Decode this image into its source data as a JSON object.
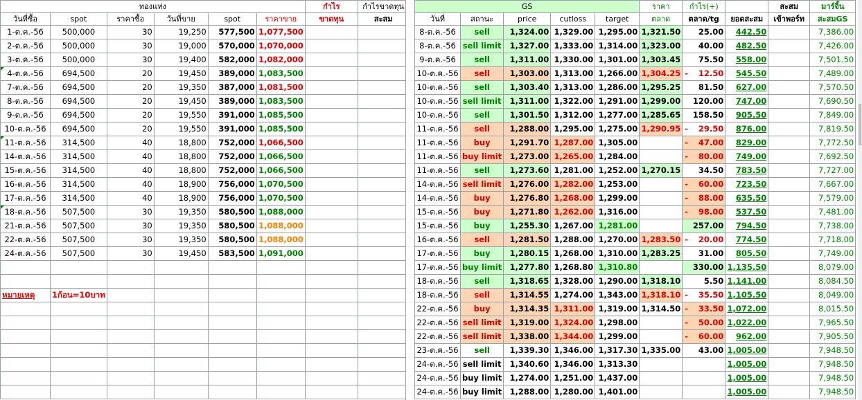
{
  "left_headers": {
    "gold_group": "ทองแท่ง",
    "profit": "กำไร",
    "loss": "ขาดทุน",
    "cumulative": "กำไรขาดทุน",
    "cumulative2": "สะสม",
    "buy_date": "วันที่ซื้อ",
    "spot": "spot",
    "buy_price": "ราคาซื้อ",
    "sell_date": "วันที่ขาย",
    "spot2": "spot",
    "sell_price": "ราคาขาย"
  },
  "left_rows": [
    {
      "buy_date": "1-ต.ค.-56",
      "spot": "500,000",
      "qty": "30",
      "sell_date": "19,250",
      "spot2": "577,500",
      "sell_price": "1,077,500",
      "color": "red",
      "marker": false
    },
    {
      "buy_date": "2-ต.ค.-56",
      "spot": "500,000",
      "qty": "30",
      "sell_date": "19,000",
      "spot2": "570,000",
      "sell_price": "1,070,000",
      "color": "red",
      "marker": false
    },
    {
      "buy_date": "3-ต.ค.-56",
      "spot": "500,000",
      "qty": "30",
      "sell_date": "19,400",
      "spot2": "582,000",
      "sell_price": "1,082,000",
      "color": "red",
      "marker": false
    },
    {
      "buy_date": "4-ต.ค.-56",
      "spot": "694,500",
      "qty": "20",
      "sell_date": "19,450",
      "spot2": "389,000",
      "sell_price": "1,083,500",
      "color": "grn",
      "marker": true
    },
    {
      "buy_date": "7-ต.ค.-56",
      "spot": "694,500",
      "qty": "20",
      "sell_date": "19,350",
      "spot2": "387,000",
      "sell_price": "1,081,500",
      "color": "red",
      "marker": false
    },
    {
      "buy_date": "8-ต.ค.-56",
      "spot": "694,500",
      "qty": "20",
      "sell_date": "19,450",
      "spot2": "389,000",
      "sell_price": "1,083,500",
      "color": "grn",
      "marker": false
    },
    {
      "buy_date": "9-ต.ค.-56",
      "spot": "694,500",
      "qty": "20",
      "sell_date": "19,550",
      "spot2": "391,000",
      "sell_price": "1,085,500",
      "color": "grn",
      "marker": false
    },
    {
      "buy_date": "10-ต.ค.-56",
      "spot": "694,500",
      "qty": "20",
      "sell_date": "19,550",
      "spot2": "391,000",
      "sell_price": "1,085,500",
      "color": "grn",
      "marker": false
    },
    {
      "buy_date": "11-ต.ค.-56",
      "spot": "314,500",
      "qty": "40",
      "sell_date": "18,800",
      "spot2": "752,000",
      "sell_price": "1,066,500",
      "color": "red",
      "marker": true
    },
    {
      "buy_date": "14-ต.ค.-56",
      "spot": "314,500",
      "qty": "40",
      "sell_date": "18,800",
      "spot2": "752,000",
      "sell_price": "1,066,500",
      "color": "grn",
      "marker": false
    },
    {
      "buy_date": "15-ต.ค.-56",
      "spot": "314,500",
      "qty": "40",
      "sell_date": "18,800",
      "spot2": "752,000",
      "sell_price": "1,066,500",
      "color": "grn",
      "marker": false
    },
    {
      "buy_date": "16-ต.ค.-56",
      "spot": "314,500",
      "qty": "40",
      "sell_date": "18,900",
      "spot2": "756,000",
      "sell_price": "1,070,500",
      "color": "grn",
      "marker": false
    },
    {
      "buy_date": "17-ต.ค.-56",
      "spot": "314,500",
      "qty": "40",
      "sell_date": "18,900",
      "spot2": "756,000",
      "sell_price": "1,070,500",
      "color": "grn",
      "marker": false
    },
    {
      "buy_date": "18-ต.ค.-56",
      "spot": "507,500",
      "qty": "30",
      "sell_date": "19,350",
      "spot2": "580,500",
      "sell_price": "1,088,000",
      "color": "grn",
      "marker": true
    },
    {
      "buy_date": "21-ต.ค.-56",
      "spot": "507,500",
      "qty": "30",
      "sell_date": "19,350",
      "spot2": "580,500",
      "sell_price": "1,088,000",
      "color": "org",
      "marker": false
    },
    {
      "buy_date": "22-ต.ค.-56",
      "spot": "507,500",
      "qty": "30",
      "sell_date": "19,350",
      "spot2": "580,500",
      "sell_price": "1,088,000",
      "color": "org",
      "marker": false
    },
    {
      "buy_date": "24-ต.ค.-56",
      "spot": "507,500",
      "qty": "30",
      "sell_date": "19,450",
      "spot2": "583,500",
      "sell_price": "1,091,000",
      "color": "grn",
      "marker": false
    }
  ],
  "note": {
    "label": "หมายเหตุ",
    "text": "1ก้อน=10บาท"
  },
  "right_headers": {
    "gs": "GS",
    "price_group": "ราคา",
    "profit_group": "กำไร(+)",
    "cum": "สะสม",
    "margin": "มาร์จิ้น",
    "date": "วันที่",
    "status": "สถานะ",
    "price": "price",
    "cutloss": "cutloss",
    "target": "target",
    "market": "ตลาด",
    "mkt_tg": "ตลาด/tg",
    "cum_total": "ยอดสะสม",
    "port": "เข้าพอร์ท",
    "cum_gs": "สะสมGS"
  },
  "right_rows": [
    {
      "date": "8-ต.ค.-56",
      "status": "sell",
      "price": "1,324.00",
      "cutloss": "1,329.00",
      "target": "1,295.00",
      "market": "1,321.50",
      "profit": "25.00",
      "neg": false,
      "cum": "442.50",
      "margin": "7,386.00",
      "sbg": "g",
      "pbg": "g",
      "cbg": "",
      "mbg": "g",
      "fbg": ""
    },
    {
      "date": "8-ต.ค.-56",
      "status": "sell limit",
      "price": "1,327.00",
      "cutloss": "1,333.00",
      "target": "1,314.00",
      "market": "1,323.00",
      "profit": "40.00",
      "neg": false,
      "cum": "482.50",
      "margin": "7,426.00",
      "sbg": "g",
      "pbg": "g",
      "cbg": "",
      "mbg": "g",
      "fbg": ""
    },
    {
      "date": "9-ต.ค.-56",
      "status": "sell",
      "price": "1,311.00",
      "cutloss": "1,330.00",
      "target": "1,301.00",
      "market": "1,303.45",
      "profit": "75.50",
      "neg": false,
      "cum": "558.00",
      "margin": "7,501.50",
      "sbg": "g",
      "pbg": "g",
      "cbg": "",
      "mbg": "g",
      "fbg": ""
    },
    {
      "date": "10-ต.ค.-56",
      "status": "sell",
      "price": "1,303.00",
      "cutloss": "1,313.00",
      "target": "1,266.00",
      "market": "1,304.25",
      "profit": "12.50",
      "neg": true,
      "cum": "545.50",
      "margin": "7,489.00",
      "sbg": "o",
      "pbg": "o",
      "cbg": "",
      "mbg": "o",
      "fbg": ""
    },
    {
      "date": "10-ต.ค.-56",
      "status": "sell",
      "price": "1,303.40",
      "cutloss": "1,313.00",
      "target": "1,286.00",
      "market": "1,295.25",
      "profit": "81.50",
      "neg": false,
      "cum": "627.00",
      "margin": "7,570.50",
      "sbg": "g",
      "pbg": "g",
      "cbg": "",
      "mbg": "g",
      "fbg": ""
    },
    {
      "date": "10-ต.ค.-56",
      "status": "sell limit",
      "price": "1,311.00",
      "cutloss": "1,322.00",
      "target": "1,291.00",
      "market": "1,299.00",
      "profit": "120.00",
      "neg": false,
      "cum": "747.00",
      "margin": "7,690.50",
      "sbg": "g",
      "pbg": "g",
      "cbg": "",
      "mbg": "g",
      "fbg": ""
    },
    {
      "date": "10-ต.ค.-56",
      "status": "sell",
      "price": "1,301.50",
      "cutloss": "1,312.00",
      "target": "1,277.00",
      "market": "1,285.65",
      "profit": "158.50",
      "neg": false,
      "cum": "905.50",
      "margin": "7,849.00",
      "sbg": "g",
      "pbg": "g",
      "cbg": "",
      "mbg": "g",
      "fbg": ""
    },
    {
      "date": "11-ต.ค.-56",
      "status": "sell",
      "price": "1,288.00",
      "cutloss": "1,295.00",
      "target": "1,275.00",
      "market": "1,290.95",
      "profit": "29.50",
      "neg": true,
      "cum": "876.00",
      "margin": "7,819.50",
      "sbg": "o",
      "pbg": "o",
      "cbg": "",
      "mbg": "o",
      "fbg": ""
    },
    {
      "date": "11-ต.ค.-56",
      "status": "buy",
      "price": "1,291.70",
      "cutloss": "1,287.00",
      "target": "1,305.00",
      "market": "",
      "profit": "47.00",
      "neg": true,
      "cum": "829.00",
      "margin": "7,772.50",
      "sbg": "o",
      "pbg": "o",
      "cbg": "o",
      "mbg": "",
      "fbg": "o"
    },
    {
      "date": "11-ต.ค.-56",
      "status": "buy limit",
      "price": "1,273.00",
      "cutloss": "1,265.00",
      "target": "1,284.00",
      "market": "",
      "profit": "80.00",
      "neg": true,
      "cum": "749.00",
      "margin": "7,692.50",
      "sbg": "o",
      "pbg": "o",
      "cbg": "o",
      "mbg": "",
      "fbg": "o"
    },
    {
      "date": "11-ต.ค.-56",
      "status": "sell",
      "price": "1,273.60",
      "cutloss": "1,281.00",
      "target": "1,252.00",
      "market": "1,270.15",
      "profit": "34.50",
      "neg": false,
      "cum": "783.50",
      "margin": "7,727.00",
      "sbg": "g",
      "pbg": "g",
      "cbg": "",
      "mbg": "g",
      "fbg": ""
    },
    {
      "date": "14-ต.ค.-56",
      "status": "sell limit",
      "price": "1,276.00",
      "cutloss": "1,282.00",
      "target": "1,253.00",
      "market": "",
      "profit": "60.00",
      "neg": true,
      "cum": "723.50",
      "margin": "7,667.00",
      "sbg": "o",
      "pbg": "o",
      "cbg": "o",
      "mbg": "",
      "fbg": "o"
    },
    {
      "date": "14-ต.ค.-56",
      "status": "buy",
      "price": "1,276.80",
      "cutloss": "1,268.00",
      "target": "1,299.00",
      "market": "",
      "profit": "88.00",
      "neg": true,
      "cum": "635.50",
      "margin": "7,579.00",
      "sbg": "o",
      "pbg": "o",
      "cbg": "o",
      "mbg": "",
      "fbg": "o"
    },
    {
      "date": "15-ต.ค.-56",
      "status": "buy",
      "price": "1,271.80",
      "cutloss": "1,262.00",
      "target": "1,316.00",
      "market": "",
      "profit": "98.00",
      "neg": true,
      "cum": "537.50",
      "margin": "7,481.00",
      "sbg": "o",
      "pbg": "o",
      "cbg": "o",
      "mbg": "",
      "fbg": "o"
    },
    {
      "date": "15-ต.ค.-56",
      "status": "buy",
      "price": "1,255.30",
      "cutloss": "1,267.00",
      "target": "1,281.00",
      "market": "",
      "profit": "257.00",
      "neg": false,
      "cum": "794.50",
      "margin": "7,738.00",
      "sbg": "g",
      "pbg": "g",
      "cbg": "",
      "mbg": "",
      "fbg": "g",
      "tbg": "g"
    },
    {
      "date": "16-ต.ค.-56",
      "status": "sell",
      "price": "1,281.50",
      "cutloss": "1,288.00",
      "target": "1,270.00",
      "market": "1,283.50",
      "profit": "20.00",
      "neg": true,
      "cum": "774.50",
      "margin": "7,718.00",
      "sbg": "o",
      "pbg": "o",
      "cbg": "",
      "mbg": "o",
      "fbg": ""
    },
    {
      "date": "17-ต.ค.-56",
      "status": "buy",
      "price": "1,280.15",
      "cutloss": "1,268.00",
      "target": "1,310.00",
      "market": "1,283.25",
      "profit": "31.00",
      "neg": false,
      "cum": "805.50",
      "margin": "7,749.00",
      "sbg": "g",
      "pbg": "g",
      "cbg": "",
      "mbg": "g",
      "fbg": ""
    },
    {
      "date": "17-ต.ค.-56",
      "status": "buy limit",
      "price": "1,277.80",
      "cutloss": "1,268.80",
      "target": "1,310.80",
      "market": "",
      "profit": "330.00",
      "neg": false,
      "cum": "1,135.50",
      "margin": "8,079.00",
      "sbg": "g",
      "pbg": "g",
      "cbg": "",
      "mbg": "",
      "fbg": "g",
      "tbg": "g"
    },
    {
      "date": "18-ต.ค.-56",
      "status": "sell",
      "price": "1,318.65",
      "cutloss": "1,328.00",
      "target": "1,290.00",
      "market": "1,318.10",
      "profit": "5.50",
      "neg": false,
      "cum": "1,141.00",
      "margin": "8,084.50",
      "sbg": "g",
      "pbg": "g",
      "cbg": "",
      "mbg": "g",
      "fbg": ""
    },
    {
      "date": "18-ต.ค.-56",
      "status": "sell",
      "price": "1,314.55",
      "cutloss": "1,274.00",
      "target": "1,343.00",
      "market": "1,318.10",
      "profit": "35.50",
      "neg": true,
      "cum": "1,105.50",
      "margin": "8,049.00",
      "sbg": "o",
      "pbg": "o",
      "cbg": "",
      "mbg": "o",
      "fbg": ""
    },
    {
      "date": "22-ต.ค.-56",
      "status": "buy",
      "price": "1,314.35",
      "cutloss": "1,311.00",
      "target": "1,319.00",
      "market": "1,314.50",
      "profit": "33.50",
      "neg": true,
      "cum": "1,072.00",
      "margin": "8,015.50",
      "sbg": "o",
      "pbg": "o",
      "cbg": "o",
      "mbg": "",
      "fbg": "o"
    },
    {
      "date": "22-ต.ค.-56",
      "status": "sell limit",
      "price": "1,319.00",
      "cutloss": "1,324.00",
      "target": "1,298.00",
      "market": "",
      "profit": "50.00",
      "neg": true,
      "cum": "1,022.00",
      "margin": "7,965.50",
      "sbg": "o",
      "pbg": "o",
      "cbg": "o",
      "mbg": "",
      "fbg": "o"
    },
    {
      "date": "22-ต.ค.-56",
      "status": "sell limit",
      "price": "1,338.00",
      "cutloss": "1,344.00",
      "target": "1,299.00",
      "market": "",
      "profit": "60.00",
      "neg": true,
      "cum": "962.00",
      "margin": "7,905.50",
      "sbg": "o",
      "pbg": "o",
      "cbg": "o",
      "mbg": "",
      "fbg": "o"
    },
    {
      "date": "23-ต.ค.-56",
      "status": "sell",
      "price": "1,339.30",
      "cutloss": "1,346.00",
      "target": "1,317.30",
      "market": "1,335.00",
      "profit": "43.00",
      "neg": false,
      "cum": "1,005.00",
      "margin": "7,948.50",
      "sbg": "",
      "pbg": "",
      "cbg": "",
      "mbg": "",
      "fbg": ""
    },
    {
      "date": "24-ต.ค.-56",
      "status": "sell limit",
      "price": "1,340.60",
      "cutloss": "1,346.00",
      "target": "1,313.30",
      "market": "",
      "profit": "",
      "neg": false,
      "cum": "1,005.00",
      "margin": "7,948.50",
      "sbg": "",
      "pbg": "",
      "cbg": "",
      "mbg": "",
      "fbg": "",
      "black": true
    },
    {
      "date": "24-ต.ค.-56",
      "status": "buy limit",
      "price": "1,274.00",
      "cutloss": "1,251.00",
      "target": "1,437.00",
      "market": "",
      "profit": "",
      "neg": false,
      "cum": "1,005.00",
      "margin": "7,948.50",
      "sbg": "",
      "pbg": "",
      "cbg": "",
      "mbg": "",
      "fbg": "",
      "black": true
    },
    {
      "date": "24-ต.ค.-56",
      "status": "buy limit",
      "price": "1,288.00",
      "cutloss": "1,280.00",
      "target": "1,401.00",
      "market": "",
      "profit": "",
      "neg": false,
      "cum": "1,005.00",
      "margin": "7,948.50",
      "sbg": "",
      "pbg": "",
      "cbg": "",
      "mbg": "",
      "fbg": "",
      "black": true
    }
  ],
  "colors": {
    "green_fill": "#ccffcc",
    "orange_fill": "#fcd5b4",
    "red_text": "#e00000",
    "green_text": "#008000",
    "orange_text": "#ff8000"
  }
}
